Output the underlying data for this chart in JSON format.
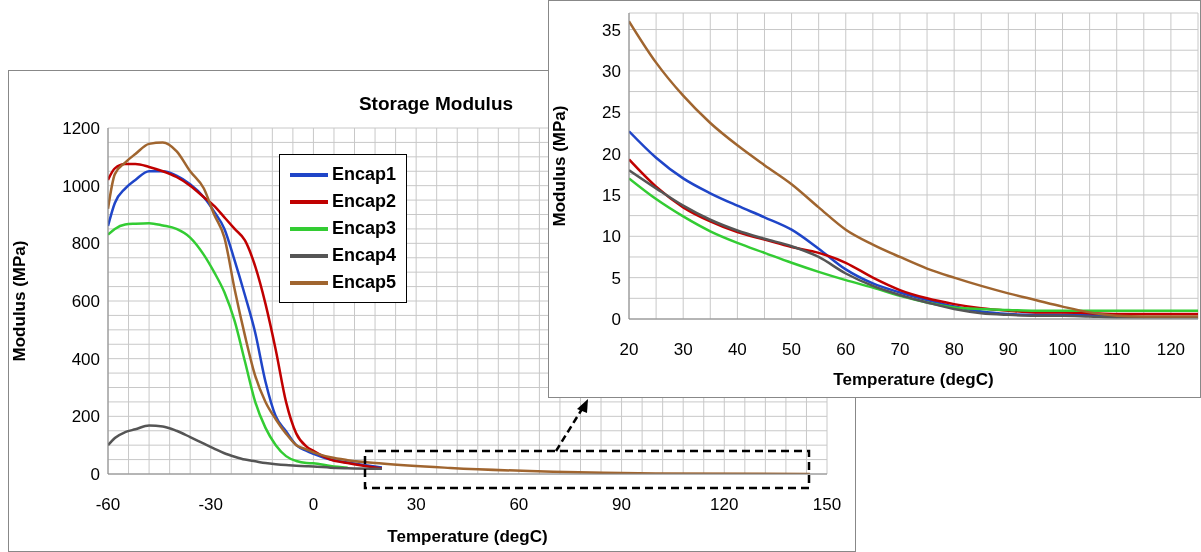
{
  "chart_data": [
    {
      "type": "line",
      "title": "Storage Modulus",
      "xlabel": "Temperature  (degC)",
      "ylabel": "Modulus  (MPa)",
      "x": [
        -60,
        -58,
        -55,
        -52,
        -48,
        -44,
        -40,
        -36,
        -32,
        -29,
        -26,
        -23,
        -20,
        -17,
        -14,
        -11,
        -8,
        -5,
        -2,
        0,
        5,
        10,
        20,
        40,
        70,
        100,
        145
      ],
      "series": [
        {
          "name": "Encap1",
          "color": "#1f45c8",
          "values": [
            860,
            940,
            990,
            1020,
            1050,
            1050,
            1035,
            1005,
            960,
            910,
            850,
            740,
            620,
            490,
            320,
            200,
            148,
            100,
            80,
            70,
            50,
            40,
            23,
            null,
            null,
            null,
            null
          ]
        },
        {
          "name": "Encap2",
          "color": "#c00000",
          "values": [
            1020,
            1060,
            1075,
            1075,
            1065,
            1050,
            1030,
            1000,
            960,
            930,
            890,
            850,
            810,
            720,
            590,
            430,
            250,
            140,
            95,
            80,
            50,
            38,
            19,
            null,
            null,
            null,
            null
          ]
        },
        {
          "name": "Encap3",
          "color": "#33cc33",
          "values": [
            830,
            850,
            865,
            868,
            870,
            862,
            850,
            820,
            760,
            700,
            630,
            530,
            390,
            250,
            160,
            100,
            62,
            45,
            38,
            37,
            28,
            22,
            null,
            null,
            null,
            null,
            null
          ]
        },
        {
          "name": "Encap4",
          "color": "#555555",
          "values": [
            100,
            125,
            145,
            155,
            168,
            165,
            150,
            128,
            105,
            88,
            72,
            60,
            50,
            44,
            38,
            34,
            31,
            29,
            27,
            26,
            22,
            20,
            18,
            null,
            null,
            null,
            null
          ]
        },
        {
          "name": "Encap5",
          "color": "#a0652f",
          "values": [
            920,
            1040,
            1080,
            1110,
            1145,
            1150,
            1120,
            1050,
            990,
            900,
            820,
            640,
            480,
            340,
            250,
            190,
            140,
            100,
            85,
            75,
            58,
            48,
            36,
            21,
            8,
            2,
            0
          ]
        }
      ],
      "xlim": [
        -60,
        150
      ],
      "xticks": [
        -60,
        {
          "value": -54,
          "label": null
        },
        {
          "value": -48,
          "label": null
        },
        {
          "value": -42,
          "label": null
        },
        {
          "value": -36,
          "label": null
        },
        -30,
        {
          "value": -24,
          "label": null
        },
        {
          "value": -18,
          "label": null
        },
        {
          "value": -12,
          "label": null
        },
        {
          "value": -6,
          "label": null
        },
        0,
        {
          "value": 6,
          "label": null
        },
        {
          "value": 12,
          "label": null
        },
        {
          "value": 18,
          "label": null
        },
        {
          "value": 24,
          "label": null
        },
        30,
        {
          "value": 36,
          "label": null
        },
        {
          "value": 42,
          "label": null
        },
        {
          "value": 48,
          "label": null
        },
        {
          "value": 54,
          "label": null
        },
        60,
        {
          "value": 66,
          "label": null
        },
        {
          "value": 72,
          "label": null
        },
        {
          "value": 78,
          "label": null
        },
        {
          "value": 84,
          "label": null
        },
        90,
        {
          "value": 96,
          "label": null
        },
        {
          "value": 102,
          "label": null
        },
        {
          "value": 108,
          "label": null
        },
        {
          "value": 114,
          "label": null
        },
        120,
        {
          "value": 126,
          "label": null
        },
        {
          "value": 132,
          "label": null
        },
        {
          "value": 138,
          "label": null
        },
        {
          "value": 144,
          "label": null
        },
        150
      ],
      "ylim": [
        0,
        1200
      ],
      "yticks": [
        0,
        {
          "value": 50,
          "label": null
        },
        {
          "value": 100,
          "label": null
        },
        {
          "value": 150,
          "label": null
        },
        200,
        {
          "value": 250,
          "label": null
        },
        {
          "value": 300,
          "label": null
        },
        {
          "value": 350,
          "label": null
        },
        400,
        {
          "value": 450,
          "label": null
        },
        {
          "value": 500,
          "label": null
        },
        {
          "value": 550,
          "label": null
        },
        600,
        {
          "value": 650,
          "label": null
        },
        {
          "value": 700,
          "label": null
        },
        {
          "value": 750,
          "label": null
        },
        800,
        {
          "value": 850,
          "label": null
        },
        {
          "value": 900,
          "label": null
        },
        {
          "value": 950,
          "label": null
        },
        1000,
        {
          "value": 1050,
          "label": null
        },
        {
          "value": 1100,
          "label": null
        },
        {
          "value": 1150,
          "label": null
        },
        1200
      ],
      "grid": true,
      "legend": "top",
      "line_style": "solid"
    },
    {
      "type": "line",
      "xlabel": "Temperature  (degC)",
      "ylabel": "Modulus  (MPa)",
      "x": [
        20,
        25,
        30,
        35,
        40,
        45,
        50,
        55,
        60,
        65,
        70,
        75,
        80,
        85,
        90,
        95,
        100,
        105,
        110,
        115,
        120,
        125
      ],
      "series": [
        {
          "color": "#1f45c8",
          "values": [
            22.7,
            19.5,
            17,
            15.2,
            13.7,
            12.3,
            10.8,
            8.5,
            6,
            4.3,
            3.2,
            2.3,
            1.5,
            0.9,
            0.6,
            0.5,
            0.5,
            0.5,
            0.4,
            null,
            null,
            null
          ]
        },
        {
          "color": "#c00000",
          "values": [
            19.3,
            16,
            13.5,
            11.8,
            10.5,
            9.6,
            8.7,
            8,
            6.8,
            5,
            3.5,
            2.5,
            1.8,
            1.3,
            1,
            0.8,
            0.8,
            0.7,
            0.6,
            0.6,
            0.6,
            0.6
          ]
        },
        {
          "color": "#33cc33",
          "values": [
            17,
            14.5,
            12.4,
            10.6,
            9.2,
            8,
            6.8,
            5.7,
            4.7,
            3.8,
            2.8,
            2,
            1.4,
            1.2,
            1.1,
            1,
            1,
            1,
            1,
            1,
            1,
            1
          ]
        },
        {
          "color": "#555555",
          "values": [
            18,
            15.8,
            13.7,
            12,
            10.7,
            9.7,
            8.8,
            7.5,
            5.5,
            4,
            2.9,
            2,
            1.2,
            0.7,
            0.5,
            0.4,
            0.4,
            0.3,
            0.2,
            0.2,
            0.2,
            0.2
          ]
        },
        {
          "color": "#a0652f",
          "values": [
            36,
            31,
            27,
            23.7,
            21,
            18.6,
            16.3,
            13.5,
            10.8,
            9,
            7.5,
            6.1,
            5,
            4,
            3.1,
            2.3,
            1.5,
            0.8,
            0.4,
            0.3,
            0.3,
            0.3
          ]
        }
      ],
      "xlim": [
        20,
        125
      ],
      "xticks": [
        20,
        {
          "value": 25,
          "label": null
        },
        30,
        {
          "value": 35,
          "label": null
        },
        40,
        {
          "value": 45,
          "label": null
        },
        50,
        {
          "value": 55,
          "label": null
        },
        60,
        {
          "value": 65,
          "label": null
        },
        70,
        {
          "value": 75,
          "label": null
        },
        80,
        {
          "value": 85,
          "label": null
        },
        90,
        {
          "value": 95,
          "label": null
        },
        100,
        {
          "value": 105,
          "label": null
        },
        110,
        {
          "value": 115,
          "label": null
        },
        120
      ],
      "ylim": [
        0,
        37
      ],
      "yticks": [
        0,
        {
          "value": 2.5,
          "label": null
        },
        5,
        {
          "value": 7.5,
          "label": null
        },
        10,
        {
          "value": 12.5,
          "label": null
        },
        15,
        {
          "value": 17.5,
          "label": null
        },
        20,
        {
          "value": 22.5,
          "label": null
        },
        25,
        {
          "value": 27.5,
          "label": null
        },
        30,
        {
          "value": 32.5,
          "label": null
        },
        35
      ],
      "grid": true,
      "line_style": "solid"
    }
  ]
}
